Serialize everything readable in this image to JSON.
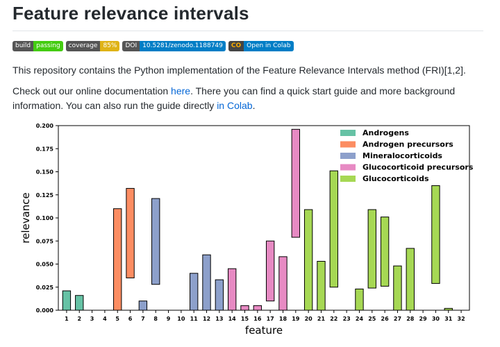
{
  "page": {
    "title": "Feature relevance intervals",
    "badges": [
      {
        "left": "build",
        "right": "passing",
        "color": "#4c1"
      },
      {
        "left": "coverage",
        "right": "85%",
        "color": "#dfb317"
      },
      {
        "left": "DOI",
        "right": "10.5281/zenodo.1188749",
        "color": "#007ec6"
      },
      {
        "left": "",
        "right": "Open in Colab",
        "color": "#007ec6",
        "icon": "colab-icon"
      }
    ],
    "intro": "This repository contains the Python implementation of the Feature Relevance Intervals method (FRI)[1,2].",
    "docs_before": "Check out our online documentation ",
    "docs_link": "here",
    "docs_middle": ". There you can find a quick start guide and more background information. You can also run the guide directly ",
    "colab_link": "in Colab",
    "docs_end": "."
  },
  "chart_data": {
    "type": "bar",
    "xlabel": "feature",
    "ylabel": "relevance",
    "ylim": [
      0,
      0.2
    ],
    "yticks": [
      "0.000",
      "0.025",
      "0.050",
      "0.075",
      "0.100",
      "0.125",
      "0.150",
      "0.175",
      "0.200"
    ],
    "categories": [
      "1",
      "2",
      "3",
      "4",
      "5",
      "6",
      "7",
      "8",
      "9",
      "10",
      "11",
      "12",
      "13",
      "14",
      "15",
      "16",
      "17",
      "18",
      "19",
      "20",
      "21",
      "22",
      "23",
      "24",
      "25",
      "26",
      "27",
      "28",
      "29",
      "30",
      "31",
      "32"
    ],
    "legend_position": "top-right",
    "series": [
      {
        "name": "Androgens",
        "color": "#66c2a5",
        "intervals": [
          [
            1,
            0,
            0.021
          ],
          [
            2,
            0,
            0.016
          ]
        ]
      },
      {
        "name": "Androgen precursors",
        "color": "#fc8d62",
        "intervals": [
          [
            5,
            0,
            0.11
          ],
          [
            6,
            0.035,
            0.132
          ]
        ]
      },
      {
        "name": "Mineralocorticoids",
        "color": "#8da0cb",
        "intervals": [
          [
            7,
            0,
            0.01
          ],
          [
            8,
            0.028,
            0.121
          ],
          [
            11,
            0,
            0.04
          ],
          [
            12,
            0,
            0.06
          ],
          [
            13,
            0,
            0.033
          ]
        ]
      },
      {
        "name": "Glucocorticoid precursors",
        "color": "#e78ac3",
        "intervals": [
          [
            14,
            0,
            0.045
          ],
          [
            15,
            0,
            0.005
          ],
          [
            16,
            0,
            0.005
          ],
          [
            17,
            0.01,
            0.075
          ],
          [
            18,
            0,
            0.058
          ],
          [
            19,
            0.079,
            0.196
          ]
        ]
      },
      {
        "name": "Glucocorticoids",
        "color": "#a6d854",
        "intervals": [
          [
            20,
            0,
            0.109
          ],
          [
            21,
            0,
            0.053
          ],
          [
            22,
            0.025,
            0.151
          ],
          [
            24,
            0,
            0.023
          ],
          [
            25,
            0.024,
            0.109
          ],
          [
            26,
            0.026,
            0.101
          ],
          [
            27,
            0,
            0.048
          ],
          [
            28,
            0,
            0.067
          ],
          [
            30,
            0.029,
            0.135
          ],
          [
            31,
            0,
            0.002
          ]
        ]
      }
    ]
  }
}
